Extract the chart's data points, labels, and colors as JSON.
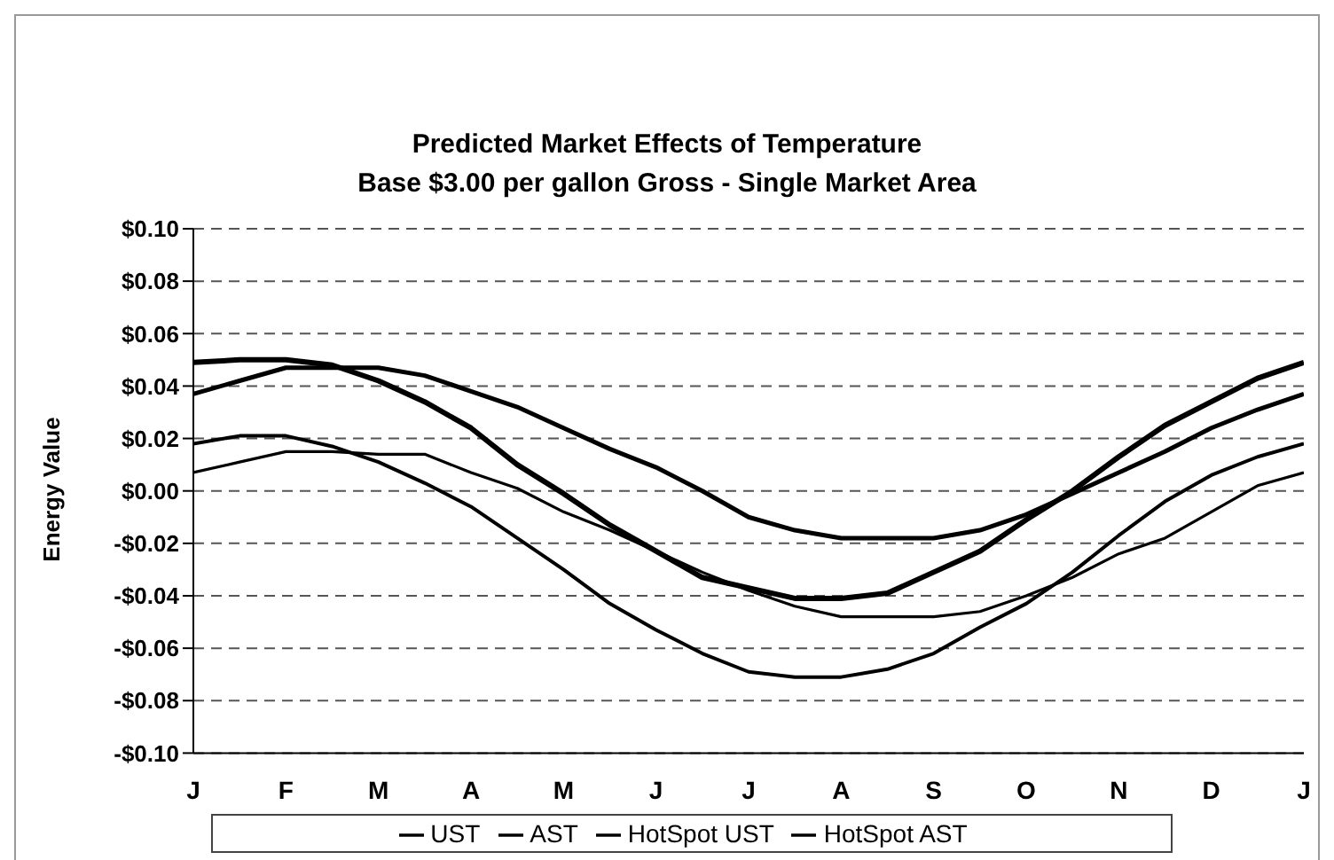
{
  "chart_data": {
    "type": "line",
    "title": "Predicted Market Effects of Temperature",
    "subtitle": "Base $3.00 per gallon Gross - Single Market Area",
    "ylabel": "Energy Value",
    "categories": [
      "J",
      null,
      "F",
      null,
      "M",
      null,
      "A",
      null,
      "M",
      null,
      "J",
      null,
      "J",
      null,
      "A",
      null,
      "S",
      null,
      "O",
      null,
      "N",
      null,
      "D",
      null,
      "J"
    ],
    "ylim": [
      -0.1,
      0.1
    ],
    "yticks": [
      {
        "value": -0.1,
        "label": "-$0.10"
      },
      {
        "value": -0.08,
        "label": "-$0.08"
      },
      {
        "value": -0.06,
        "label": "-$0.06"
      },
      {
        "value": -0.04,
        "label": "-$0.04"
      },
      {
        "value": -0.02,
        "label": "-$0.02"
      },
      {
        "value": 0,
        "label": "$0.00"
      },
      {
        "value": 0.02,
        "label": "$0.02"
      },
      {
        "value": 0.04,
        "label": "$0.04"
      },
      {
        "value": 0.06,
        "label": "$0.06"
      },
      {
        "value": 0.08,
        "label": "$0.08"
      },
      {
        "value": 0.1,
        "label": "$0.10"
      }
    ],
    "grid": "y",
    "legend": "bottom",
    "marker": "none",
    "line_style": "solid",
    "series": [
      {
        "name": "UST",
        "color": "#000000",
        "values": [
          0.049,
          0.05,
          0.05,
          0.048,
          0.042,
          0.034,
          0.024,
          0.01,
          -0.001,
          -0.013,
          -0.023,
          -0.033,
          -0.037,
          -0.041,
          -0.041,
          -0.039,
          -0.031,
          -0.023,
          -0.011,
          0,
          0.013,
          0.025,
          0.034,
          0.043,
          0.049
        ]
      },
      {
        "name": "AST",
        "color": "#000000",
        "values": [
          0.037,
          0.042,
          0.047,
          0.047,
          0.047,
          0.044,
          0.038,
          0.032,
          0.024,
          0.016,
          0.009,
          0,
          -0.01,
          -0.015,
          -0.018,
          -0.018,
          -0.018,
          -0.015,
          -0.009,
          -0.001,
          0.007,
          0.015,
          0.024,
          0.031,
          0.037
        ]
      },
      {
        "name": "HotSpot UST",
        "color": "#000000",
        "values": [
          0.018,
          0.021,
          0.021,
          0.017,
          0.011,
          0.003,
          -0.006,
          -0.018,
          -0.03,
          -0.043,
          -0.053,
          -0.062,
          -0.069,
          -0.071,
          -0.071,
          -0.068,
          -0.062,
          -0.052,
          -0.043,
          -0.031,
          -0.017,
          -0.004,
          0.006,
          0.013,
          0.018
        ]
      },
      {
        "name": "HotSpot AST",
        "color": "#000000",
        "values": [
          0.007,
          0.011,
          0.015,
          0.015,
          0.014,
          0.014,
          0.007,
          0.001,
          -0.008,
          -0.015,
          -0.023,
          -0.031,
          -0.038,
          -0.044,
          -0.048,
          -0.048,
          -0.048,
          -0.046,
          -0.04,
          -0.033,
          -0.024,
          -0.018,
          -0.008,
          0.002,
          0.007
        ]
      }
    ]
  }
}
